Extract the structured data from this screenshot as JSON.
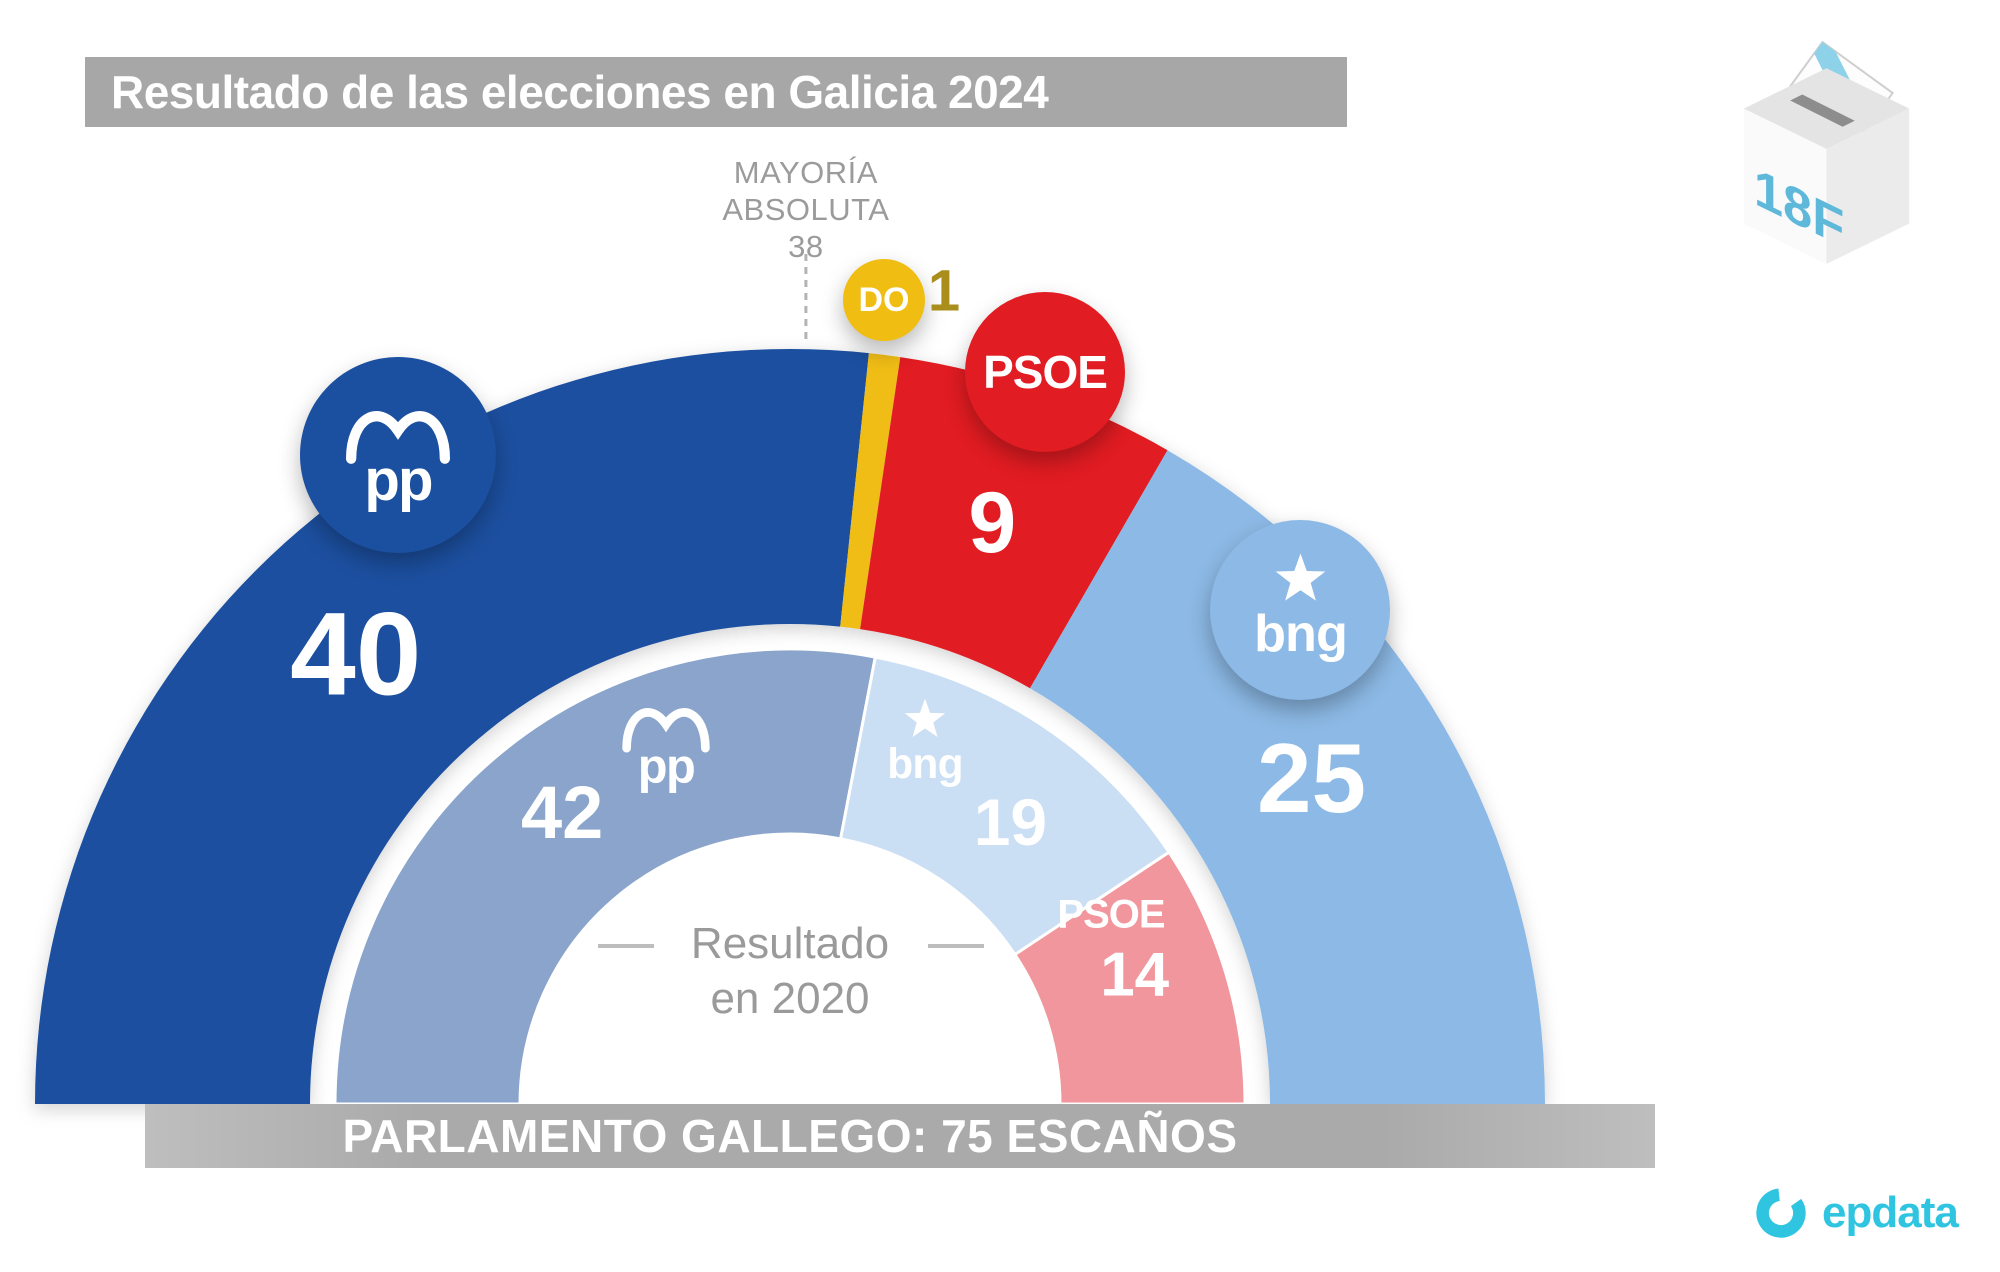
{
  "header": {
    "title": "Resultado de las elecciones en Galicia 2024"
  },
  "date_badge": {
    "label": "18F"
  },
  "majority": {
    "line1": "MAYORÍA",
    "line2": "ABSOLUTA",
    "value": "38"
  },
  "center_label": {
    "line1": "Resultado",
    "line2": "en 2020"
  },
  "footer": {
    "text": "PARLAMENTO GALLEGO: 75 ESCAÑOS"
  },
  "brand": {
    "name": "epdata"
  },
  "colors": {
    "header_bar": "#a8a7a7",
    "footer_bar": "#abaaaa",
    "muted_text": "#9b9b9b",
    "majority_line": "#b3b3b3",
    "accent_cyan": "#2fc4e0",
    "do_number": "#a98e1c"
  },
  "chart_data": {
    "type": "half-donut",
    "title": "Resultado de las elecciones en Galicia 2024",
    "total_seats": 75,
    "majority_seats": 38,
    "legend_position": "on-chart",
    "rings": [
      {
        "name": "2024",
        "position": "outer",
        "series": [
          {
            "party": "PP",
            "abbr": "pp",
            "seats": 40,
            "color": "#1b4f9f"
          },
          {
            "party": "DO",
            "abbr": "DO",
            "seats": 1,
            "color": "#f0bd13"
          },
          {
            "party": "PSOE",
            "abbr": "PSOE",
            "seats": 9,
            "color": "#e11c23"
          },
          {
            "party": "BNG",
            "abbr": "bng",
            "seats": 25,
            "color": "#8cb9e5"
          }
        ]
      },
      {
        "name": "2020",
        "position": "inner",
        "caption": "Resultado en 2020",
        "series": [
          {
            "party": "PP",
            "abbr": "pp",
            "seats": 42,
            "color": "#8aa4cb"
          },
          {
            "party": "BNG",
            "abbr": "bng",
            "seats": 19,
            "color": "#cadef4"
          },
          {
            "party": "PSOE",
            "abbr": "PSOE",
            "seats": 14,
            "color": "#f0969c"
          }
        ]
      }
    ]
  }
}
